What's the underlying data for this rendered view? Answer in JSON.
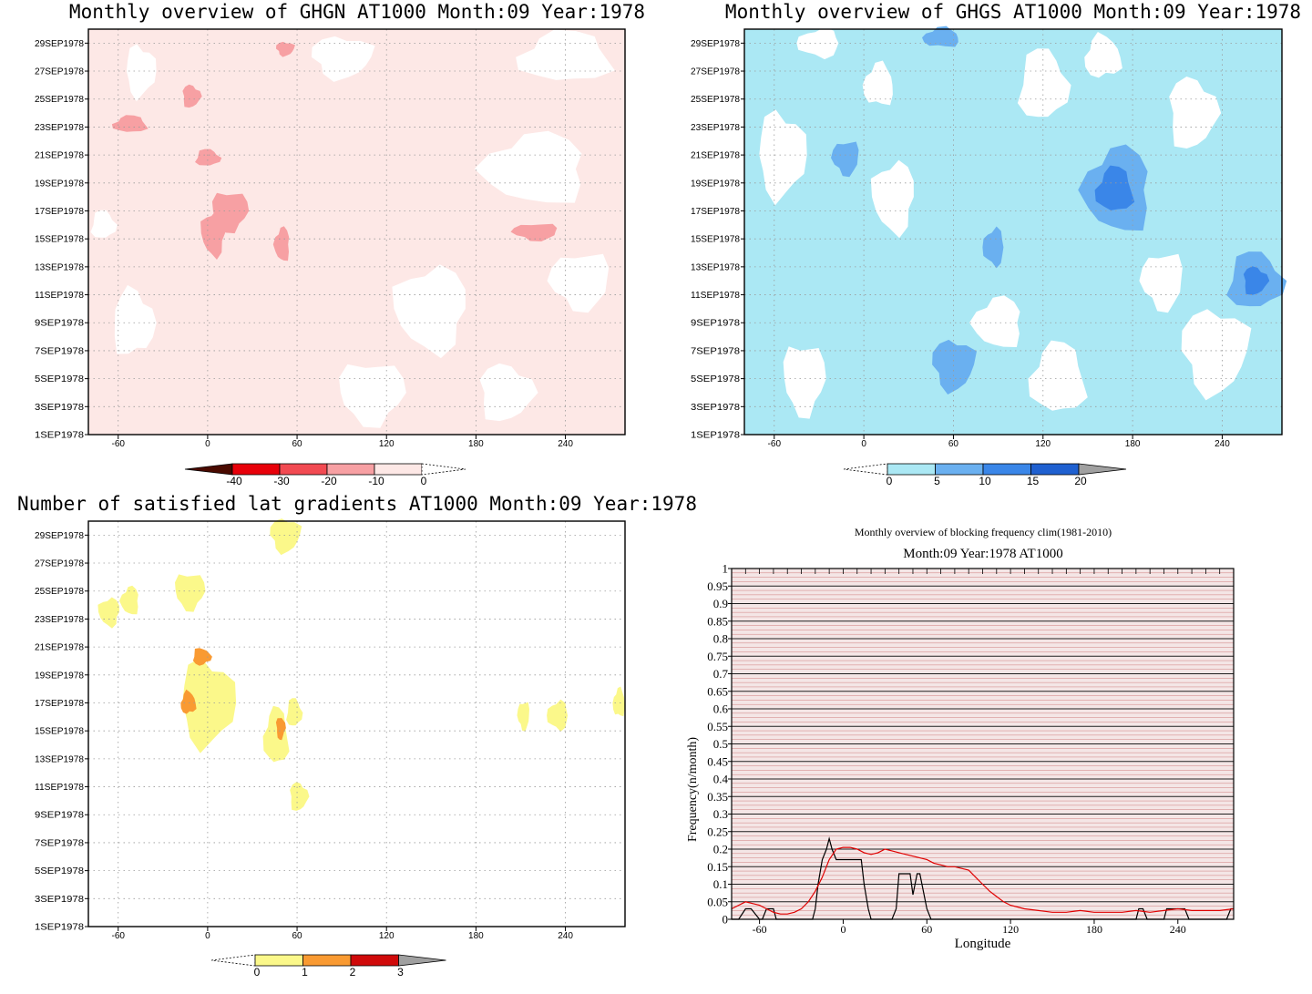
{
  "panels": {
    "ghgn": {
      "title": "Monthly overview of GHGN AT1000 Month:09 Year:1978",
      "colorbar_ticks": [
        "-40",
        "-30",
        "-20",
        "-10",
        "0"
      ],
      "colorbar_colors": [
        "#4a0a00",
        "#e8000a",
        "#f24a52",
        "#f7a0a3",
        "#fde8e6"
      ]
    },
    "ghgs": {
      "title": "Monthly overview of GHGS AT1000 Month:09 Year:1978",
      "colorbar_ticks": [
        "0",
        "5",
        "10",
        "15",
        "20"
      ],
      "colorbar_colors": [
        "#abe8f4",
        "#6ab0f0",
        "#3a86e8",
        "#1f60d0",
        "#a0a0a0"
      ]
    },
    "grad": {
      "title": "Number of satisfied lat gradients AT1000 Month:09 Year:1978",
      "colorbar_ticks": [
        "0",
        "1",
        "2",
        "3"
      ],
      "colorbar_colors": [
        "#fbf88a",
        "#f99a32",
        "#d00a0a",
        "#a0a0a0"
      ]
    },
    "freq": {
      "title": "Monthly overview of blocking frequency clim(1981-2010)",
      "subtitle": "Month:09 Year:1978  AT1000"
    }
  },
  "shared_axes": {
    "x_ticks": [
      "-60",
      "0",
      "60",
      "120",
      "180",
      "240"
    ],
    "y_ticks": [
      "1SEP1978",
      "3SEP1978",
      "5SEP1978",
      "7SEP1978",
      "9SEP1978",
      "11SEP1978",
      "13SEP1978",
      "15SEP1978",
      "17SEP1978",
      "19SEP1978",
      "21SEP1978",
      "23SEP1978",
      "25SEP1978",
      "27SEP1978",
      "29SEP1978"
    ]
  },
  "chart_data": [
    {
      "type": "heatmap",
      "title": "Monthly overview of GHGN AT1000 Month:09 Year:1978",
      "x_ticks": [
        -60,
        0,
        60,
        120,
        180,
        240
      ],
      "xlim": [
        -80,
        280
      ],
      "y_ticks": [
        "1SEP1978",
        "3SEP1978",
        "5SEP1978",
        "7SEP1978",
        "9SEP1978",
        "11SEP1978",
        "13SEP1978",
        "15SEP1978",
        "17SEP1978",
        "19SEP1978",
        "21SEP1978",
        "23SEP1978",
        "25SEP1978",
        "27SEP1978",
        "29SEP1978"
      ],
      "contour_levels": [
        -40,
        -30,
        -20,
        -10,
        0
      ],
      "regions": [
        {
          "level": -10,
          "lon": 15,
          "day": 17,
          "rlon": 12,
          "rday": 1.4
        },
        {
          "level": -10,
          "lon": 4,
          "day": 15.4,
          "rlon": 8,
          "rday": 1.6
        },
        {
          "level": -10,
          "lon": 50,
          "day": 14.6,
          "rlon": 5,
          "rday": 1.2
        },
        {
          "level": -10,
          "lon": -52,
          "day": 23.2,
          "rlon": 11,
          "rday": 0.6
        },
        {
          "level": -10,
          "lon": 0,
          "day": 20.8,
          "rlon": 8,
          "rday": 0.6
        },
        {
          "level": -10,
          "lon": -11,
          "day": 25.2,
          "rlon": 6,
          "rday": 0.8
        },
        {
          "level": -10,
          "lon": 52,
          "day": 28.6,
          "rlon": 6,
          "rday": 0.5
        },
        {
          "level": -10,
          "lon": 220,
          "day": 15.5,
          "rlon": 15,
          "rday": 0.6
        }
      ]
    },
    {
      "type": "heatmap",
      "title": "Monthly overview of GHGS AT1000 Month:09 Year:1978",
      "x_ticks": [
        -60,
        0,
        60,
        120,
        180,
        240
      ],
      "xlim": [
        -80,
        280
      ],
      "y_ticks": [
        "1SEP1978",
        "3SEP1978",
        "5SEP1978",
        "7SEP1978",
        "9SEP1978",
        "11SEP1978",
        "13SEP1978",
        "15SEP1978",
        "17SEP1978",
        "19SEP1978",
        "21SEP1978",
        "23SEP1978",
        "25SEP1978",
        "27SEP1978",
        "29SEP1978"
      ],
      "contour_levels": [
        0,
        5,
        10,
        15,
        20
      ],
      "regions": [
        {
          "level": 5,
          "lon": 170,
          "day": 18.5,
          "rlon": 22,
          "rday": 3
        },
        {
          "level": 10,
          "lon": 168,
          "day": 18.5,
          "rlon": 12,
          "rday": 1.6
        },
        {
          "level": 5,
          "lon": 262,
          "day": 12,
          "rlon": 18,
          "rday": 2
        },
        {
          "level": 10,
          "lon": 262,
          "day": 12,
          "rlon": 8,
          "rday": 1
        },
        {
          "level": 5,
          "lon": 60,
          "day": 6,
          "rlon": 14,
          "rday": 1.8
        },
        {
          "level": 5,
          "lon": -12,
          "day": 20.8,
          "rlon": 9,
          "rday": 1.2
        },
        {
          "level": 5,
          "lon": 87,
          "day": 14.4,
          "rlon": 7,
          "rday": 1.3
        },
        {
          "level": 5,
          "lon": 52,
          "day": 29.4,
          "rlon": 12,
          "rday": 0.7
        }
      ]
    },
    {
      "type": "heatmap",
      "title": "Number of satisfied lat gradients AT1000 Month:09 Year:1978",
      "x_ticks": [
        -60,
        0,
        60,
        120,
        180,
        240
      ],
      "xlim": [
        -80,
        280
      ],
      "y_ticks": [
        "1SEP1978",
        "3SEP1978",
        "5SEP1978",
        "7SEP1978",
        "9SEP1978",
        "11SEP1978",
        "13SEP1978",
        "15SEP1978",
        "17SEP1978",
        "19SEP1978",
        "21SEP1978",
        "23SEP1978",
        "25SEP1978",
        "27SEP1978",
        "29SEP1978"
      ],
      "contour_levels": [
        0,
        1,
        2,
        3
      ],
      "regions": [
        {
          "level": 1,
          "lon": 0,
          "day": 17,
          "rlon": 18,
          "rday": 3
        },
        {
          "level": 1,
          "lon": -12,
          "day": 25,
          "rlon": 10,
          "rday": 1.3
        },
        {
          "level": 1,
          "lon": -66,
          "day": 23.5,
          "rlon": 7,
          "rday": 1
        },
        {
          "level": 1,
          "lon": -52,
          "day": 24.3,
          "rlon": 6,
          "rday": 1
        },
        {
          "level": 1,
          "lon": 46,
          "day": 14.6,
          "rlon": 8,
          "rday": 2
        },
        {
          "level": 1,
          "lon": 58,
          "day": 16.3,
          "rlon": 5,
          "rday": 1
        },
        {
          "level": 1,
          "lon": 61,
          "day": 10.3,
          "rlon": 6,
          "rday": 1
        },
        {
          "level": 1,
          "lon": 52,
          "day": 29,
          "rlon": 10,
          "rday": 1.2
        },
        {
          "level": 1,
          "lon": 212,
          "day": 16.1,
          "rlon": 4,
          "rday": 1
        },
        {
          "level": 1,
          "lon": 235,
          "day": 16.1,
          "rlon": 7,
          "rday": 1
        },
        {
          "level": 1,
          "lon": 276,
          "day": 17,
          "rlon": 4,
          "rday": 1
        },
        {
          "level": 2,
          "lon": -13,
          "day": 17,
          "rlon": 5,
          "rday": 0.8
        },
        {
          "level": 2,
          "lon": -4,
          "day": 20.3,
          "rlon": 6,
          "rday": 0.6
        },
        {
          "level": 2,
          "lon": 49,
          "day": 15.2,
          "rlon": 3,
          "rday": 0.8
        }
      ]
    },
    {
      "type": "line",
      "title": "Monthly overview of blocking frequency clim(1981-2010)",
      "subtitle": "Month:09 Year:1978  AT1000",
      "xlabel": "Longitude",
      "ylabel": "Frequency(n/month)",
      "xlim": [
        -80,
        280
      ],
      "ylim": [
        0,
        1
      ],
      "x_ticks": [
        -60,
        0,
        60,
        120,
        180,
        240
      ],
      "y_ticks": [
        "0",
        "0.05",
        "0.1",
        "0.15",
        "0.2",
        "0.25",
        "0.3",
        "0.35",
        "0.4",
        "0.45",
        "0.5",
        "0.55",
        "0.6",
        "0.65",
        "0.7",
        "0.75",
        "0.8",
        "0.85",
        "0.9",
        "0.95",
        "1"
      ],
      "series": [
        {
          "color": "#000000",
          "x": [
            -80,
            -75,
            -70,
            -66,
            -60,
            -58,
            -55,
            -50,
            -48,
            -45,
            -40,
            -35,
            -30,
            -25,
            -22,
            -20,
            -18,
            -15,
            -12,
            -10,
            -8,
            -5,
            0,
            5,
            10,
            13,
            15,
            18,
            20,
            25,
            30,
            35,
            38,
            40,
            43,
            45,
            48,
            50,
            53,
            55,
            58,
            60,
            63,
            65,
            70,
            75,
            80,
            100,
            120,
            140,
            160,
            180,
            200,
            210,
            212,
            215,
            218,
            220,
            225,
            230,
            232,
            240,
            245,
            248,
            250,
            255,
            260,
            265,
            270,
            275,
            278,
            280
          ],
          "y": [
            0.0,
            0.0,
            0.03,
            0.03,
            0.0,
            0.0,
            0.03,
            0.03,
            0.0,
            0.0,
            0.0,
            0.0,
            0.0,
            0.0,
            0.0,
            0.03,
            0.1,
            0.17,
            0.2,
            0.23,
            0.2,
            0.17,
            0.17,
            0.17,
            0.17,
            0.17,
            0.1,
            0.03,
            0.0,
            0.0,
            0.0,
            0.0,
            0.03,
            0.13,
            0.13,
            0.13,
            0.13,
            0.07,
            0.13,
            0.13,
            0.07,
            0.03,
            0.0,
            0.0,
            0.0,
            0.0,
            0.0,
            0.0,
            0.0,
            0.0,
            0.0,
            0.0,
            0.0,
            0.0,
            0.03,
            0.03,
            0.0,
            0.0,
            0.0,
            0.0,
            0.03,
            0.03,
            0.03,
            0.0,
            0.0,
            0.0,
            0.0,
            0.0,
            0.0,
            0.0,
            0.03,
            0.03
          ]
        },
        {
          "color": "#e00000",
          "x": [
            -80,
            -75,
            -70,
            -65,
            -60,
            -55,
            -50,
            -45,
            -40,
            -35,
            -30,
            -25,
            -20,
            -15,
            -10,
            -5,
            0,
            5,
            10,
            15,
            20,
            25,
            30,
            35,
            40,
            45,
            50,
            55,
            60,
            65,
            70,
            75,
            80,
            85,
            90,
            95,
            100,
            105,
            110,
            115,
            120,
            125,
            130,
            140,
            150,
            160,
            170,
            180,
            190,
            200,
            210,
            220,
            230,
            240,
            250,
            260,
            270,
            280
          ],
          "y": [
            0.03,
            0.04,
            0.05,
            0.045,
            0.04,
            0.03,
            0.02,
            0.015,
            0.015,
            0.02,
            0.03,
            0.05,
            0.08,
            0.12,
            0.17,
            0.2,
            0.205,
            0.205,
            0.2,
            0.19,
            0.185,
            0.19,
            0.2,
            0.195,
            0.19,
            0.185,
            0.18,
            0.175,
            0.17,
            0.16,
            0.155,
            0.15,
            0.15,
            0.145,
            0.14,
            0.12,
            0.1,
            0.08,
            0.065,
            0.05,
            0.04,
            0.035,
            0.03,
            0.025,
            0.02,
            0.02,
            0.025,
            0.02,
            0.02,
            0.02,
            0.025,
            0.02,
            0.025,
            0.03,
            0.025,
            0.025,
            0.025,
            0.03
          ]
        }
      ]
    }
  ]
}
